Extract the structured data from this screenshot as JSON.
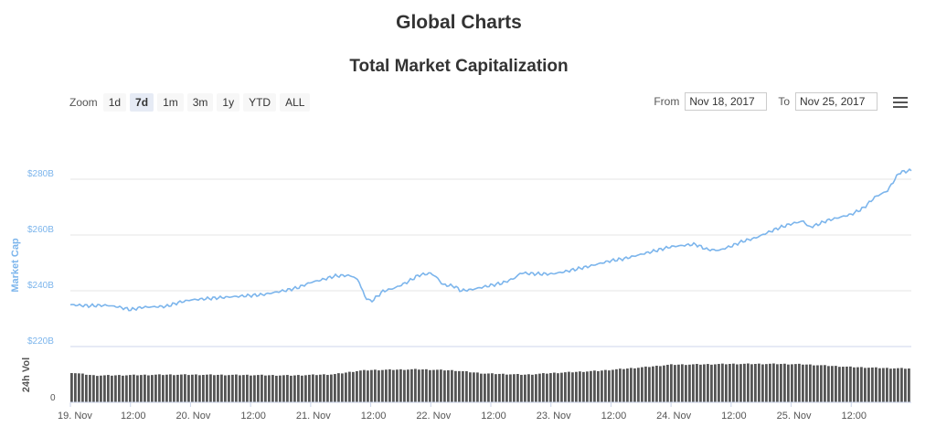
{
  "page": {
    "title": "Global Charts"
  },
  "controls": {
    "zoom_label": "Zoom",
    "zoom_buttons": [
      "1d",
      "7d",
      "1m",
      "3m",
      "1y",
      "YTD",
      "ALL"
    ],
    "zoom_active": "7d",
    "from_label": "From",
    "from_value": "Nov 18, 2017",
    "to_label": "To",
    "to_value": "Nov 25, 2017"
  },
  "colors": {
    "line": "#7cb5ec",
    "volume": "#555555",
    "grid": "#e6e6e6"
  },
  "chart_data": {
    "type": "line",
    "title": "Total Market Capitalization",
    "ylabel": "Market Cap",
    "ylim": [
      220,
      280
    ],
    "yticks": [
      {
        "value": 220,
        "label": "$220B"
      },
      {
        "value": 240,
        "label": "$240B"
      },
      {
        "value": 260,
        "label": "$260B"
      },
      {
        "value": 280,
        "label": "$280B"
      }
    ],
    "xlim": [
      0,
      7
    ],
    "xticks": [
      {
        "x": 0,
        "label": "19. Nov"
      },
      {
        "x": 0.5,
        "label": "12:00"
      },
      {
        "x": 1,
        "label": "20. Nov"
      },
      {
        "x": 1.5,
        "label": "12:00"
      },
      {
        "x": 2,
        "label": "21. Nov"
      },
      {
        "x": 2.5,
        "label": "12:00"
      },
      {
        "x": 3,
        "label": "22. Nov"
      },
      {
        "x": 3.5,
        "label": "12:00"
      },
      {
        "x": 4,
        "label": "23. Nov"
      },
      {
        "x": 4.5,
        "label": "12:00"
      },
      {
        "x": 5,
        "label": "24. Nov"
      },
      {
        "x": 5.5,
        "label": "12:00"
      },
      {
        "x": 6,
        "label": "25. Nov"
      },
      {
        "x": 6.5,
        "label": "12:00"
      }
    ],
    "x_unit": "days since 19. Nov 00:00",
    "series": [
      {
        "name": "Market Cap ($B)",
        "points": [
          [
            0.0,
            235.0
          ],
          [
            0.15,
            234.6
          ],
          [
            0.3,
            234.8
          ],
          [
            0.4,
            234.2
          ],
          [
            0.5,
            233.2
          ],
          [
            0.6,
            234.1
          ],
          [
            0.8,
            234.4
          ],
          [
            0.9,
            235.8
          ],
          [
            1.0,
            236.7
          ],
          [
            1.2,
            237.4
          ],
          [
            1.4,
            238.0
          ],
          [
            1.6,
            238.6
          ],
          [
            1.8,
            240.2
          ],
          [
            1.9,
            241.2
          ],
          [
            2.0,
            243.0
          ],
          [
            2.1,
            244.0
          ],
          [
            2.2,
            245.3
          ],
          [
            2.3,
            245.5
          ],
          [
            2.35,
            245.2
          ],
          [
            2.4,
            243.6
          ],
          [
            2.45,
            238.0
          ],
          [
            2.5,
            236.1
          ],
          [
            2.55,
            237.8
          ],
          [
            2.6,
            239.8
          ],
          [
            2.7,
            241.0
          ],
          [
            2.8,
            243.0
          ],
          [
            2.9,
            245.6
          ],
          [
            3.0,
            246.3
          ],
          [
            3.05,
            244.8
          ],
          [
            3.1,
            242.2
          ],
          [
            3.2,
            241.6
          ],
          [
            3.25,
            240.0
          ],
          [
            3.35,
            240.5
          ],
          [
            3.45,
            241.5
          ],
          [
            3.6,
            242.8
          ],
          [
            3.7,
            244.6
          ],
          [
            3.75,
            246.4
          ],
          [
            3.85,
            246.1
          ],
          [
            4.0,
            246.0
          ],
          [
            4.1,
            246.7
          ],
          [
            4.3,
            248.6
          ],
          [
            4.5,
            250.8
          ],
          [
            4.6,
            251.4
          ],
          [
            4.8,
            253.6
          ],
          [
            5.0,
            255.8
          ],
          [
            5.2,
            256.7
          ],
          [
            5.3,
            254.8
          ],
          [
            5.4,
            254.5
          ],
          [
            5.5,
            256.0
          ],
          [
            5.6,
            257.8
          ],
          [
            5.7,
            258.9
          ],
          [
            5.8,
            260.8
          ],
          [
            5.9,
            262.6
          ],
          [
            6.0,
            264.0
          ],
          [
            6.1,
            265.0
          ],
          [
            6.15,
            262.8
          ],
          [
            6.2,
            263.4
          ],
          [
            6.3,
            265.2
          ],
          [
            6.5,
            267.4
          ],
          [
            6.6,
            269.6
          ],
          [
            6.7,
            273.7
          ],
          [
            6.8,
            275.8
          ],
          [
            6.9,
            282.4
          ],
          [
            7.0,
            283.2
          ]
        ]
      }
    ],
    "volume": {
      "label": "24h Vol",
      "zero_label": "0",
      "relative": [
        [
          0.0,
          0.78
        ],
        [
          0.2,
          0.7
        ],
        [
          0.3,
          0.7
        ],
        [
          0.8,
          0.72
        ],
        [
          1.0,
          0.72
        ],
        [
          1.5,
          0.71
        ],
        [
          1.85,
          0.7
        ],
        [
          2.2,
          0.73
        ],
        [
          2.4,
          0.82
        ],
        [
          2.5,
          0.84
        ],
        [
          2.9,
          0.86
        ],
        [
          3.2,
          0.83
        ],
        [
          3.45,
          0.75
        ],
        [
          3.8,
          0.72
        ],
        [
          4.0,
          0.76
        ],
        [
          4.4,
          0.82
        ],
        [
          4.8,
          0.92
        ],
        [
          5.0,
          0.98
        ],
        [
          5.3,
          0.99
        ],
        [
          5.5,
          1.0
        ],
        [
          5.9,
          1.0
        ],
        [
          6.1,
          0.99
        ],
        [
          6.5,
          0.92
        ],
        [
          6.8,
          0.89
        ],
        [
          7.0,
          0.88
        ]
      ]
    }
  }
}
